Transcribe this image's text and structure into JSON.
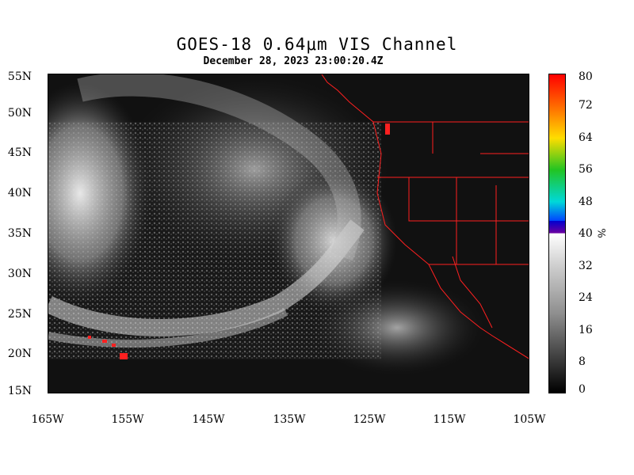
{
  "header": {
    "title": "GOES-18  0.64μm VIS Channel",
    "timestamp": "December 28,  2023 23:00:20.4Z"
  },
  "axes": {
    "latitude_labels": [
      "55N",
      "50N",
      "45N",
      "40N",
      "35N",
      "30N",
      "25N",
      "20N",
      "15N"
    ],
    "longitude_labels": [
      "165W",
      "155W",
      "145W",
      "135W",
      "125W",
      "115W",
      "105W"
    ]
  },
  "colorbar": {
    "ticks": [
      "80",
      "72",
      "64",
      "56",
      "48",
      "40",
      "32",
      "24",
      "16",
      "8",
      "0"
    ],
    "unit": "%",
    "range": [
      0,
      80
    ],
    "colors": {
      "top": "#ff0000",
      "mid_split": "#6a00a0",
      "gray_top": "#ffffff",
      "bottom": "#000000"
    }
  },
  "map": {
    "border_color": "#ff2020",
    "background": "#0c0c0c"
  }
}
